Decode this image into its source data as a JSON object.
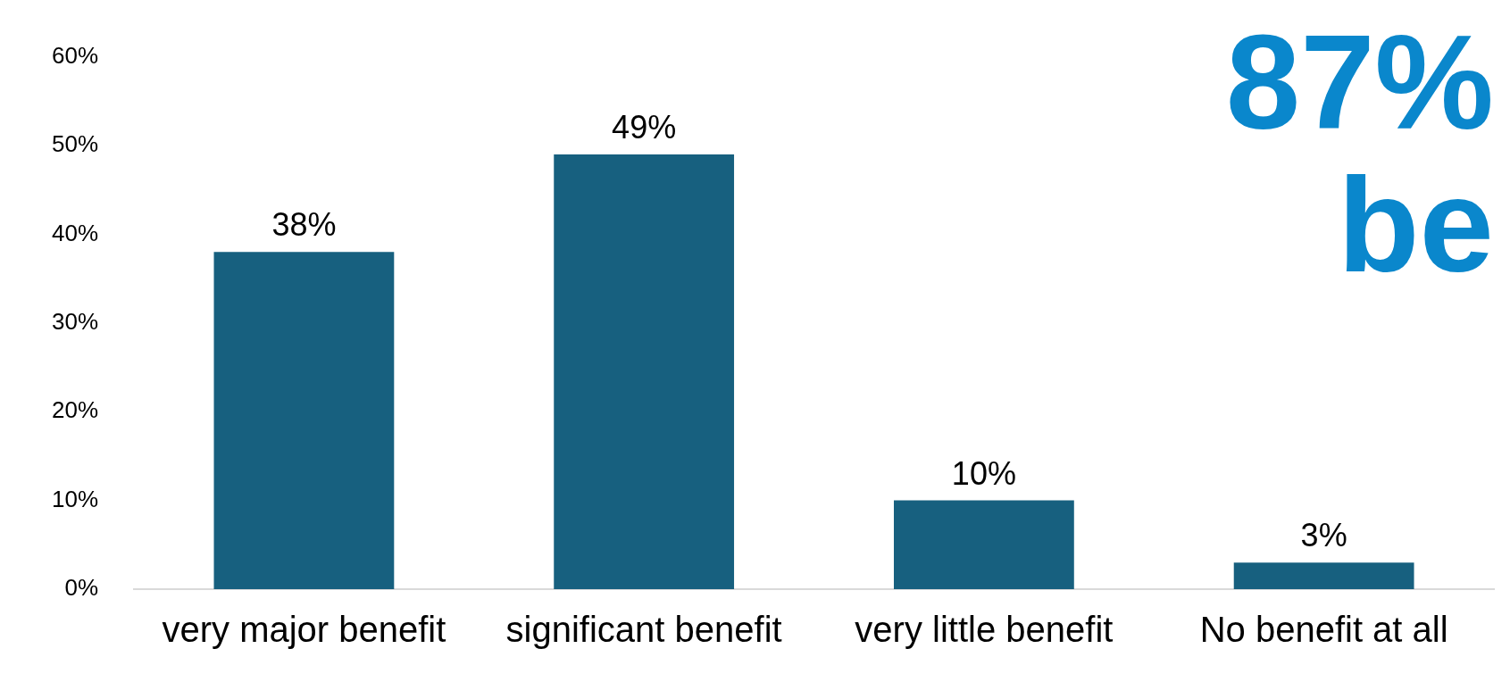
{
  "chart_data": {
    "type": "bar",
    "categories": [
      "very major benefit",
      "significant benefit",
      "very little benefit",
      "No benefit at all"
    ],
    "values": [
      38,
      49,
      10,
      3
    ],
    "color": "#17607f",
    "value_labels": [
      "38%",
      "49%",
      "10%",
      "3%"
    ],
    "ylim": [
      0,
      60
    ],
    "yticks": [
      {
        "value": 0,
        "label": "0%"
      },
      {
        "value": 10,
        "label": "10%"
      },
      {
        "value": 20,
        "label": "20%"
      },
      {
        "value": 30,
        "label": "30%"
      },
      {
        "value": 40,
        "label": "40%"
      },
      {
        "value": 50,
        "label": "50%"
      },
      {
        "value": 60,
        "label": "60%"
      }
    ],
    "grid": false,
    "legend": false,
    "annotations": [
      "87%",
      "be"
    ]
  }
}
